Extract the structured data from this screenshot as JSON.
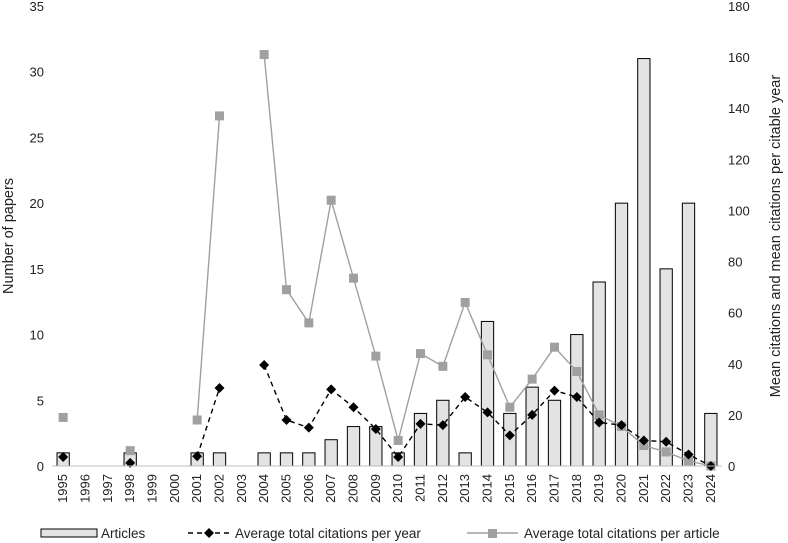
{
  "chart_data": {
    "type": "bar",
    "categories": [
      "1995",
      "1996",
      "1997",
      "1998",
      "1999",
      "2000",
      "2001",
      "2002",
      "2003",
      "2004",
      "2005",
      "2006",
      "2007",
      "2008",
      "2009",
      "2010",
      "2011",
      "2012",
      "2013",
      "2014",
      "2015",
      "2016",
      "2017",
      "2018",
      "2019",
      "2020",
      "2021",
      "2022",
      "2023",
      "2024"
    ],
    "ylabel": "Number of papers",
    "y2label": "Mean citations and mean citations per citable year",
    "ylim": [
      0,
      35
    ],
    "y2lim": [
      0,
      180
    ],
    "yticks": [
      "0",
      "5",
      "10",
      "15",
      "20",
      "25",
      "30",
      "35"
    ],
    "y2ticks": [
      "0",
      "20",
      "40",
      "60",
      "80",
      "100",
      "120",
      "140",
      "160",
      "180"
    ],
    "grid": false,
    "legend_position": "bottom",
    "series": [
      {
        "name": "Articles",
        "type": "bar",
        "axis": "left",
        "color": "#e3e3e3",
        "values": [
          1,
          0,
          0,
          1,
          0,
          0,
          1,
          1,
          0,
          1,
          1,
          1,
          2,
          3,
          3,
          1,
          4,
          5,
          1,
          11,
          4,
          6,
          5,
          10,
          14,
          20,
          31,
          15,
          20,
          4
        ]
      },
      {
        "name": "Average total citations per year",
        "type": "line",
        "axis": "right",
        "color": "#000000",
        "dash": "dashed",
        "marker": "diamond",
        "values": [
          3.5,
          null,
          null,
          1.2,
          null,
          null,
          3.8,
          30.5,
          null,
          39.5,
          18,
          15,
          30,
          23,
          14.5,
          3.5,
          16.5,
          16,
          27,
          21,
          12,
          20,
          29.5,
          27,
          17,
          16,
          10,
          9.5,
          4.5,
          0
        ]
      },
      {
        "name": "Average total citations per article",
        "type": "line",
        "axis": "right",
        "color": "#a0a0a0",
        "dash": "solid",
        "marker": "square",
        "values": [
          19,
          null,
          null,
          6,
          null,
          null,
          18,
          137,
          null,
          161,
          69,
          56,
          104,
          73.5,
          43,
          10,
          44,
          39,
          64,
          43.5,
          23,
          34,
          46.5,
          37,
          20,
          15.5,
          8,
          5.5,
          2,
          0
        ]
      }
    ]
  }
}
